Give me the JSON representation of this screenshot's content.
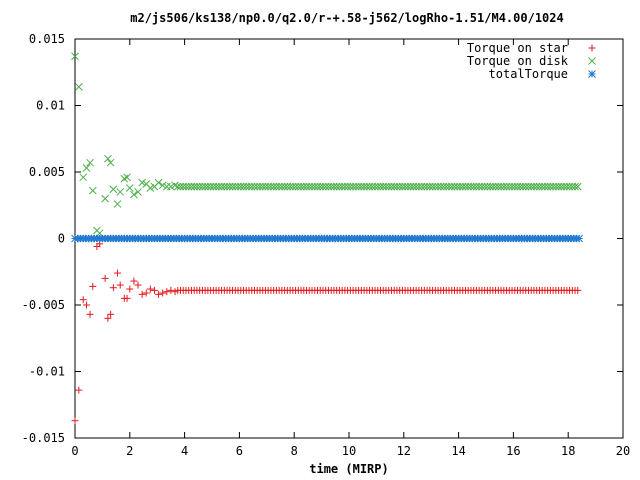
{
  "chart_data": {
    "type": "scatter",
    "title": "m2/js506/ks138/np0.0/q2.0/r-+.58-j562/logRho-1.51/M4.00/1024",
    "xlabel": "time (MIRP)",
    "ylabel": "",
    "xlim": [
      0,
      20
    ],
    "ylim": [
      -0.015,
      0.015
    ],
    "xticks": [
      "0",
      "2",
      "4",
      "6",
      "8",
      "10",
      "12",
      "14",
      "16",
      "18",
      "20"
    ],
    "yticks": [
      "-0.015",
      "-0.01",
      "-0.005",
      "0",
      "0.005",
      "0.01",
      "0.015"
    ],
    "grid": false,
    "legend_position": "top-right",
    "x_end": 18.4,
    "x_step": 0.1,
    "series": [
      {
        "name": "Torque on star",
        "marker": "plus",
        "color": "#e41a1c",
        "early_points": [
          [
            0.0,
            -0.0137
          ],
          [
            0.14,
            -0.0114
          ],
          [
            0.3,
            -0.0046
          ],
          [
            0.42,
            -0.005
          ],
          [
            0.55,
            -0.0057
          ],
          [
            0.65,
            -0.0036
          ],
          [
            0.8,
            -0.0006
          ],
          [
            0.9,
            -0.0004
          ],
          [
            1.1,
            -0.003
          ],
          [
            1.2,
            -0.006
          ],
          [
            1.3,
            -0.0057
          ],
          [
            1.4,
            -0.0037
          ],
          [
            1.55,
            -0.0026
          ],
          [
            1.65,
            -0.0035
          ],
          [
            1.8,
            -0.0045
          ],
          [
            1.9,
            -0.0045
          ],
          [
            2.0,
            -0.0038
          ],
          [
            2.15,
            -0.0032
          ],
          [
            2.3,
            -0.0035
          ],
          [
            2.45,
            -0.0042
          ],
          [
            2.6,
            -0.0041
          ],
          [
            2.75,
            -0.0038
          ],
          [
            2.9,
            -0.0039
          ],
          [
            3.05,
            -0.0042
          ],
          [
            3.2,
            -0.0041
          ],
          [
            3.35,
            -0.004
          ],
          [
            3.5,
            -0.0039
          ],
          [
            3.65,
            -0.004
          ]
        ],
        "steady_value": -0.0039
      },
      {
        "name": "Torque on disk",
        "marker": "cross",
        "color": "#4daf4a",
        "early_points": [
          [
            0.0,
            0.0137
          ],
          [
            0.14,
            0.0114
          ],
          [
            0.3,
            0.0046
          ],
          [
            0.42,
            0.0053
          ],
          [
            0.55,
            0.0057
          ],
          [
            0.65,
            0.0036
          ],
          [
            0.8,
            0.0006
          ],
          [
            0.9,
            0.0004
          ],
          [
            1.1,
            0.003
          ],
          [
            1.2,
            0.006
          ],
          [
            1.3,
            0.0057
          ],
          [
            1.4,
            0.0037
          ],
          [
            1.55,
            0.0026
          ],
          [
            1.65,
            0.0035
          ],
          [
            1.8,
            0.0045
          ],
          [
            1.9,
            0.0046
          ],
          [
            2.0,
            0.0038
          ],
          [
            2.15,
            0.0033
          ],
          [
            2.3,
            0.0035
          ],
          [
            2.45,
            0.0042
          ],
          [
            2.6,
            0.0041
          ],
          [
            2.75,
            0.0038
          ],
          [
            2.9,
            0.0039
          ],
          [
            3.05,
            0.0042
          ],
          [
            3.2,
            0.004
          ],
          [
            3.35,
            0.0039
          ],
          [
            3.5,
            0.0039
          ],
          [
            3.65,
            0.004
          ]
        ],
        "steady_value": 0.0039
      },
      {
        "name": "totalTorque",
        "marker": "star",
        "color": "#1f78d0",
        "early_points": [],
        "steady_value": 0.0
      }
    ]
  }
}
